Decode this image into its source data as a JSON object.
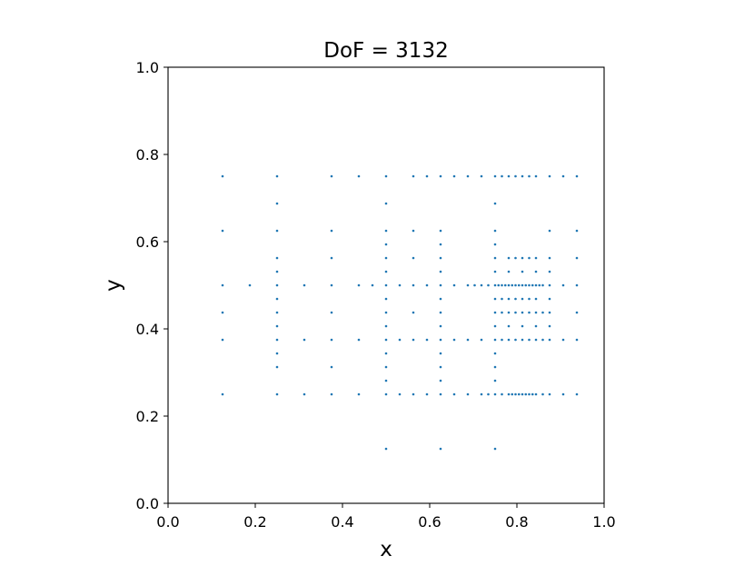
{
  "chart_data": {
    "type": "scatter",
    "title": "DoF = 3132",
    "xlabel": "x",
    "ylabel": "y",
    "xlim": [
      0.0,
      1.0
    ],
    "ylim": [
      0.0,
      1.0
    ],
    "xticks": [
      "0.0",
      "0.2",
      "0.4",
      "0.6",
      "0.8",
      "1.0"
    ],
    "yticks": [
      "0.0",
      "0.2",
      "0.4",
      "0.6",
      "0.8",
      "1.0"
    ],
    "grid": false,
    "legend": "none",
    "marker_color": "#1f77b4",
    "series": [
      {
        "points": [
          [
            0.125,
            0.75
          ],
          [
            0.25,
            0.75
          ],
          [
            0.375,
            0.75
          ],
          [
            0.4375,
            0.75
          ],
          [
            0.5,
            0.75
          ],
          [
            0.5625,
            0.75
          ],
          [
            0.59375,
            0.75
          ],
          [
            0.625,
            0.75
          ],
          [
            0.65625,
            0.75
          ],
          [
            0.6875,
            0.75
          ],
          [
            0.71875,
            0.75
          ],
          [
            0.75,
            0.75
          ],
          [
            0.765625,
            0.75
          ],
          [
            0.78125,
            0.75
          ],
          [
            0.796875,
            0.75
          ],
          [
            0.8125,
            0.75
          ],
          [
            0.828125,
            0.75
          ],
          [
            0.84375,
            0.75
          ],
          [
            0.875,
            0.75
          ],
          [
            0.90625,
            0.75
          ],
          [
            0.9375,
            0.75
          ],
          [
            0.25,
            0.6875
          ],
          [
            0.5,
            0.6875
          ],
          [
            0.75,
            0.6875
          ],
          [
            0.125,
            0.625
          ],
          [
            0.25,
            0.625
          ],
          [
            0.375,
            0.625
          ],
          [
            0.5,
            0.625
          ],
          [
            0.5625,
            0.625
          ],
          [
            0.625,
            0.625
          ],
          [
            0.75,
            0.625
          ],
          [
            0.875,
            0.625
          ],
          [
            0.9375,
            0.625
          ],
          [
            0.5,
            0.59375
          ],
          [
            0.625,
            0.59375
          ],
          [
            0.75,
            0.59375
          ],
          [
            0.25,
            0.5625
          ],
          [
            0.375,
            0.5625
          ],
          [
            0.5,
            0.5625
          ],
          [
            0.5625,
            0.5625
          ],
          [
            0.625,
            0.5625
          ],
          [
            0.75,
            0.5625
          ],
          [
            0.78125,
            0.5625
          ],
          [
            0.796875,
            0.5625
          ],
          [
            0.8125,
            0.5625
          ],
          [
            0.828125,
            0.5625
          ],
          [
            0.84375,
            0.5625
          ],
          [
            0.875,
            0.5625
          ],
          [
            0.9375,
            0.5625
          ],
          [
            0.25,
            0.53125
          ],
          [
            0.5,
            0.53125
          ],
          [
            0.625,
            0.53125
          ],
          [
            0.75,
            0.53125
          ],
          [
            0.78125,
            0.53125
          ],
          [
            0.8125,
            0.53125
          ],
          [
            0.84375,
            0.53125
          ],
          [
            0.875,
            0.53125
          ],
          [
            0.125,
            0.5
          ],
          [
            0.1875,
            0.5
          ],
          [
            0.25,
            0.5
          ],
          [
            0.3125,
            0.5
          ],
          [
            0.375,
            0.5
          ],
          [
            0.4375,
            0.5
          ],
          [
            0.46875,
            0.5
          ],
          [
            0.5,
            0.5
          ],
          [
            0.53125,
            0.5
          ],
          [
            0.5625,
            0.5
          ],
          [
            0.59375,
            0.5
          ],
          [
            0.625,
            0.5
          ],
          [
            0.65625,
            0.5
          ],
          [
            0.6875,
            0.5
          ],
          [
            0.703125,
            0.5
          ],
          [
            0.71875,
            0.5
          ],
          [
            0.734375,
            0.5
          ],
          [
            0.75,
            0.5
          ],
          [
            0.7578125,
            0.5
          ],
          [
            0.765625,
            0.5
          ],
          [
            0.7734375,
            0.5
          ],
          [
            0.78125,
            0.5
          ],
          [
            0.7890625,
            0.5
          ],
          [
            0.796875,
            0.5
          ],
          [
            0.8046875,
            0.5
          ],
          [
            0.8125,
            0.5
          ],
          [
            0.8203125,
            0.5
          ],
          [
            0.828125,
            0.5
          ],
          [
            0.8359375,
            0.5
          ],
          [
            0.84375,
            0.5
          ],
          [
            0.8515625,
            0.5
          ],
          [
            0.859375,
            0.5
          ],
          [
            0.875,
            0.5
          ],
          [
            0.90625,
            0.5
          ],
          [
            0.9375,
            0.5
          ],
          [
            0.25,
            0.46875
          ],
          [
            0.5,
            0.46875
          ],
          [
            0.625,
            0.46875
          ],
          [
            0.75,
            0.46875
          ],
          [
            0.765625,
            0.46875
          ],
          [
            0.78125,
            0.46875
          ],
          [
            0.796875,
            0.46875
          ],
          [
            0.8125,
            0.46875
          ],
          [
            0.828125,
            0.46875
          ],
          [
            0.84375,
            0.46875
          ],
          [
            0.875,
            0.46875
          ],
          [
            0.125,
            0.4375
          ],
          [
            0.25,
            0.4375
          ],
          [
            0.375,
            0.4375
          ],
          [
            0.5,
            0.4375
          ],
          [
            0.5625,
            0.4375
          ],
          [
            0.625,
            0.4375
          ],
          [
            0.75,
            0.4375
          ],
          [
            0.765625,
            0.4375
          ],
          [
            0.78125,
            0.4375
          ],
          [
            0.796875,
            0.4375
          ],
          [
            0.8125,
            0.4375
          ],
          [
            0.828125,
            0.4375
          ],
          [
            0.84375,
            0.4375
          ],
          [
            0.859375,
            0.4375
          ],
          [
            0.875,
            0.4375
          ],
          [
            0.9375,
            0.4375
          ],
          [
            0.25,
            0.40625
          ],
          [
            0.5,
            0.40625
          ],
          [
            0.625,
            0.40625
          ],
          [
            0.75,
            0.40625
          ],
          [
            0.78125,
            0.40625
          ],
          [
            0.8125,
            0.40625
          ],
          [
            0.84375,
            0.40625
          ],
          [
            0.875,
            0.40625
          ],
          [
            0.125,
            0.375
          ],
          [
            0.25,
            0.375
          ],
          [
            0.3125,
            0.375
          ],
          [
            0.375,
            0.375
          ],
          [
            0.4375,
            0.375
          ],
          [
            0.5,
            0.375
          ],
          [
            0.53125,
            0.375
          ],
          [
            0.5625,
            0.375
          ],
          [
            0.59375,
            0.375
          ],
          [
            0.625,
            0.375
          ],
          [
            0.65625,
            0.375
          ],
          [
            0.6875,
            0.375
          ],
          [
            0.71875,
            0.375
          ],
          [
            0.75,
            0.375
          ],
          [
            0.765625,
            0.375
          ],
          [
            0.78125,
            0.375
          ],
          [
            0.796875,
            0.375
          ],
          [
            0.8125,
            0.375
          ],
          [
            0.828125,
            0.375
          ],
          [
            0.84375,
            0.375
          ],
          [
            0.859375,
            0.375
          ],
          [
            0.875,
            0.375
          ],
          [
            0.90625,
            0.375
          ],
          [
            0.9375,
            0.375
          ],
          [
            0.25,
            0.34375
          ],
          [
            0.5,
            0.34375
          ],
          [
            0.625,
            0.34375
          ],
          [
            0.75,
            0.34375
          ],
          [
            0.25,
            0.3125
          ],
          [
            0.375,
            0.3125
          ],
          [
            0.5,
            0.3125
          ],
          [
            0.625,
            0.3125
          ],
          [
            0.75,
            0.3125
          ],
          [
            0.5,
            0.28125
          ],
          [
            0.625,
            0.28125
          ],
          [
            0.75,
            0.28125
          ],
          [
            0.125,
            0.25
          ],
          [
            0.25,
            0.25
          ],
          [
            0.3125,
            0.25
          ],
          [
            0.375,
            0.25
          ],
          [
            0.4375,
            0.25
          ],
          [
            0.5,
            0.25
          ],
          [
            0.53125,
            0.25
          ],
          [
            0.5625,
            0.25
          ],
          [
            0.59375,
            0.25
          ],
          [
            0.625,
            0.25
          ],
          [
            0.65625,
            0.25
          ],
          [
            0.6875,
            0.25
          ],
          [
            0.71875,
            0.25
          ],
          [
            0.734375,
            0.25
          ],
          [
            0.75,
            0.25
          ],
          [
            0.765625,
            0.25
          ],
          [
            0.78125,
            0.25
          ],
          [
            0.7890625,
            0.25
          ],
          [
            0.796875,
            0.25
          ],
          [
            0.8046875,
            0.25
          ],
          [
            0.8125,
            0.25
          ],
          [
            0.8203125,
            0.25
          ],
          [
            0.828125,
            0.25
          ],
          [
            0.8359375,
            0.25
          ],
          [
            0.84375,
            0.25
          ],
          [
            0.859375,
            0.25
          ],
          [
            0.875,
            0.25
          ],
          [
            0.90625,
            0.25
          ],
          [
            0.9375,
            0.25
          ],
          [
            0.5,
            0.125
          ],
          [
            0.625,
            0.125
          ],
          [
            0.75,
            0.125
          ]
        ]
      }
    ]
  }
}
